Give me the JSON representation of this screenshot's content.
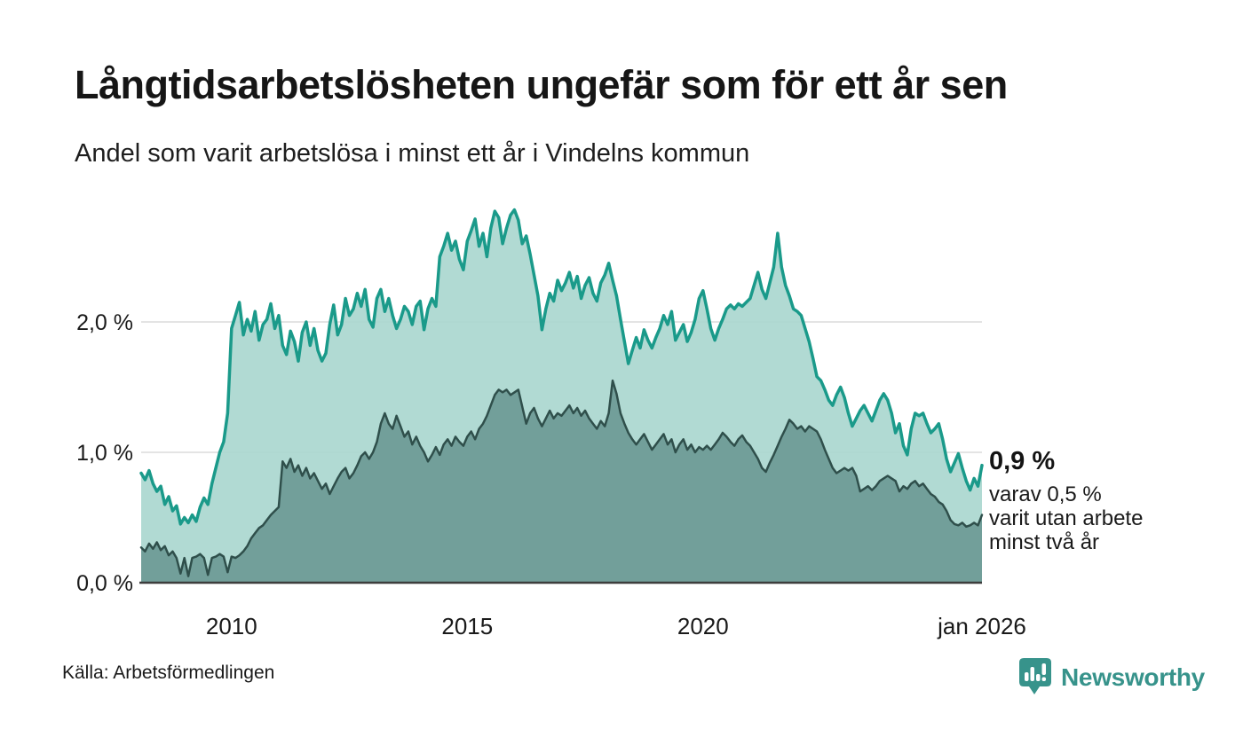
{
  "header": {
    "title": "Långtidsarbetslösheten ungefär som för ett år sen",
    "subtitle": "Andel som varit arbetslösa i minst ett år i Vindelns kommun"
  },
  "annotation": {
    "value": "0,9 %",
    "line1": "varav 0,5 %",
    "line2": "varit utan arbete",
    "line3": "minst två år"
  },
  "footer": {
    "source": "Källa: Arbetsförmedlingen",
    "brand": "Newsworthy"
  },
  "colors": {
    "line_1yr": "#1a9a8a",
    "fill_1yr": "#a8d6ce",
    "line_2yr": "#2f4f4b",
    "fill_2yr": "#6f9c97",
    "gridline": "#dcdcdc",
    "baseline": "#3d3d3d",
    "text": "#1a1a1a",
    "brand_teal": "#37938b"
  },
  "chart_data": {
    "type": "area",
    "title": "Långtidsarbetslösheten ungefär som för ett år sen",
    "subtitle": "Andel som varit arbetslösa i minst ett år i Vindelns kommun",
    "unit": "%",
    "grid": true,
    "x_axis": {
      "min": 2008.083,
      "max": 2025.917,
      "ticks": [
        {
          "label": "2010",
          "value": 2010
        },
        {
          "label": "2015",
          "value": 2015
        },
        {
          "label": "2020",
          "value": 2020
        },
        {
          "label": "jan 2026",
          "value": 2025.917
        }
      ]
    },
    "y_axis": {
      "min": 0,
      "max": 2.95,
      "ticks": [
        {
          "label": "0,0 %",
          "value": 0
        },
        {
          "label": "1,0 %",
          "value": 1
        },
        {
          "label": "2,0 %",
          "value": 2
        }
      ]
    },
    "series": [
      {
        "name": "Andel arbetslösa minst ett år",
        "latest_label": "0,9 %",
        "start": 2008.083,
        "step_months": 1,
        "values": [
          0.84,
          0.79,
          0.86,
          0.76,
          0.7,
          0.74,
          0.6,
          0.66,
          0.55,
          0.59,
          0.45,
          0.5,
          0.46,
          0.52,
          0.47,
          0.58,
          0.65,
          0.6,
          0.76,
          0.88,
          1.0,
          1.08,
          1.3,
          1.95,
          2.05,
          2.15,
          1.9,
          2.02,
          1.93,
          2.08,
          1.86,
          1.98,
          2.02,
          2.14,
          1.95,
          2.05,
          1.82,
          1.75,
          1.93,
          1.85,
          1.7,
          1.92,
          2.0,
          1.82,
          1.95,
          1.78,
          1.7,
          1.76,
          1.98,
          2.13,
          1.9,
          1.98,
          2.18,
          2.05,
          2.1,
          2.22,
          2.12,
          2.25,
          2.02,
          1.96,
          2.18,
          2.25,
          2.08,
          2.18,
          2.05,
          1.95,
          2.02,
          2.12,
          2.08,
          1.98,
          2.12,
          2.16,
          1.94,
          2.1,
          2.18,
          2.12,
          2.5,
          2.58,
          2.68,
          2.55,
          2.62,
          2.48,
          2.4,
          2.62,
          2.7,
          2.79,
          2.58,
          2.68,
          2.5,
          2.72,
          2.85,
          2.8,
          2.6,
          2.72,
          2.82,
          2.86,
          2.78,
          2.6,
          2.66,
          2.52,
          2.36,
          2.2,
          1.94,
          2.1,
          2.22,
          2.16,
          2.32,
          2.24,
          2.3,
          2.38,
          2.26,
          2.35,
          2.18,
          2.28,
          2.34,
          2.22,
          2.16,
          2.3,
          2.36,
          2.45,
          2.32,
          2.2,
          2.02,
          1.85,
          1.68,
          1.78,
          1.88,
          1.8,
          1.94,
          1.86,
          1.8,
          1.88,
          1.95,
          2.05,
          1.98,
          2.08,
          1.86,
          1.92,
          1.98,
          1.85,
          1.92,
          2.02,
          2.18,
          2.24,
          2.1,
          1.95,
          1.86,
          1.95,
          2.02,
          2.1,
          2.13,
          2.1,
          2.14,
          2.12,
          2.15,
          2.18,
          2.28,
          2.38,
          2.25,
          2.18,
          2.3,
          2.42,
          2.68,
          2.42,
          2.28,
          2.2,
          2.1,
          2.08,
          2.05,
          1.95,
          1.85,
          1.72,
          1.58,
          1.55,
          1.48,
          1.4,
          1.36,
          1.44,
          1.5,
          1.42,
          1.3,
          1.2,
          1.26,
          1.32,
          1.36,
          1.3,
          1.24,
          1.32,
          1.4,
          1.45,
          1.4,
          1.3,
          1.15,
          1.22,
          1.05,
          0.98,
          1.18,
          1.3,
          1.28,
          1.3,
          1.22,
          1.15,
          1.18,
          1.22,
          1.1,
          0.95,
          0.85,
          0.92,
          0.99,
          0.88,
          0.78,
          0.71,
          0.8,
          0.74,
          0.9
        ]
      },
      {
        "name": "varav utan arbete minst två år",
        "latest_label": "0,5 %",
        "start": 2008.083,
        "step_months": 1,
        "values": [
          0.27,
          0.24,
          0.3,
          0.26,
          0.31,
          0.25,
          0.28,
          0.21,
          0.24,
          0.19,
          0.07,
          0.19,
          0.05,
          0.19,
          0.2,
          0.22,
          0.19,
          0.06,
          0.19,
          0.2,
          0.22,
          0.2,
          0.08,
          0.2,
          0.19,
          0.21,
          0.24,
          0.28,
          0.34,
          0.38,
          0.42,
          0.44,
          0.48,
          0.52,
          0.55,
          0.58,
          0.93,
          0.88,
          0.95,
          0.85,
          0.9,
          0.82,
          0.88,
          0.8,
          0.84,
          0.78,
          0.72,
          0.76,
          0.68,
          0.74,
          0.8,
          0.85,
          0.88,
          0.8,
          0.84,
          0.9,
          0.97,
          1.0,
          0.95,
          1.0,
          1.08,
          1.22,
          1.3,
          1.22,
          1.18,
          1.28,
          1.2,
          1.12,
          1.16,
          1.06,
          1.12,
          1.05,
          1.0,
          0.93,
          0.98,
          1.04,
          0.98,
          1.06,
          1.1,
          1.05,
          1.12,
          1.08,
          1.05,
          1.12,
          1.16,
          1.1,
          1.18,
          1.22,
          1.28,
          1.36,
          1.44,
          1.48,
          1.46,
          1.48,
          1.44,
          1.46,
          1.48,
          1.35,
          1.22,
          1.3,
          1.34,
          1.26,
          1.2,
          1.26,
          1.32,
          1.26,
          1.3,
          1.28,
          1.32,
          1.36,
          1.3,
          1.34,
          1.28,
          1.32,
          1.26,
          1.22,
          1.18,
          1.24,
          1.2,
          1.3,
          1.55,
          1.45,
          1.3,
          1.22,
          1.15,
          1.1,
          1.06,
          1.1,
          1.14,
          1.08,
          1.02,
          1.06,
          1.1,
          1.14,
          1.06,
          1.1,
          1.0,
          1.06,
          1.1,
          1.02,
          1.06,
          1.0,
          1.04,
          1.02,
          1.05,
          1.02,
          1.06,
          1.1,
          1.15,
          1.12,
          1.08,
          1.05,
          1.1,
          1.13,
          1.08,
          1.05,
          1.0,
          0.95,
          0.88,
          0.85,
          0.92,
          0.98,
          1.05,
          1.12,
          1.18,
          1.25,
          1.22,
          1.18,
          1.2,
          1.16,
          1.2,
          1.18,
          1.16,
          1.1,
          1.02,
          0.95,
          0.88,
          0.84,
          0.86,
          0.88,
          0.86,
          0.88,
          0.82,
          0.7,
          0.72,
          0.74,
          0.71,
          0.74,
          0.78,
          0.8,
          0.82,
          0.8,
          0.78,
          0.7,
          0.74,
          0.72,
          0.76,
          0.78,
          0.74,
          0.76,
          0.72,
          0.68,
          0.66,
          0.62,
          0.6,
          0.55,
          0.48,
          0.45,
          0.44,
          0.46,
          0.43,
          0.44,
          0.46,
          0.44,
          0.52
        ]
      }
    ]
  }
}
